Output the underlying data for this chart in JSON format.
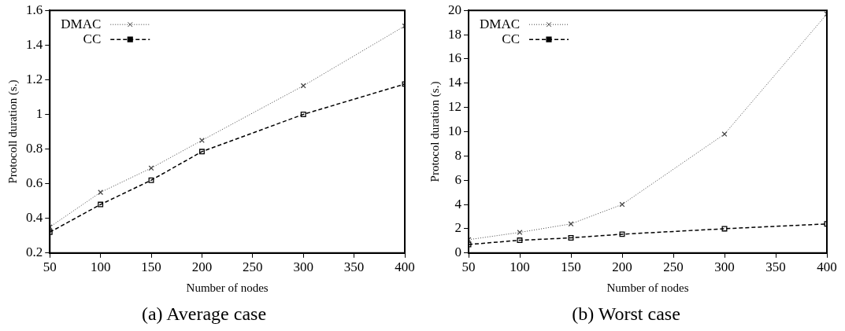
{
  "chart_data": [
    {
      "type": "line",
      "title": "(a) Average case",
      "xlabel": "Number of nodes",
      "ylabel": "Protocoll duration (s.)",
      "x": [
        50,
        100,
        150,
        200,
        300,
        400
      ],
      "xlim": [
        50,
        400
      ],
      "xticks": [
        50,
        100,
        150,
        200,
        250,
        300,
        350,
        400
      ],
      "ylim": [
        0.2,
        1.6
      ],
      "yticks": [
        {
          "value": 0.2,
          "label": "0.2"
        },
        {
          "value": 0.4,
          "label": "0.4"
        },
        {
          "value": 0.6,
          "label": "0.6"
        },
        {
          "value": 0.8,
          "label": "0.8"
        },
        1,
        {
          "value": 1.2,
          "label": "1.2"
        },
        {
          "value": 1.4,
          "label": "1.4"
        },
        {
          "value": 1.6,
          "label": "1.6"
        }
      ],
      "legend": "top left",
      "grid": false,
      "series": [
        {
          "name": "DMAC",
          "color": "#444444",
          "marker": "cross",
          "line_style": "dotted",
          "values": [
            0.35,
            0.55,
            0.69,
            0.85,
            1.165,
            1.51
          ]
        },
        {
          "name": "CC",
          "color": "#000000",
          "marker": "square",
          "line_style": "dashed",
          "values": [
            0.32,
            0.48,
            0.62,
            0.785,
            1.0,
            1.175
          ]
        }
      ]
    },
    {
      "type": "line",
      "title": "(b) Worst case",
      "xlabel": "Number of nodes",
      "ylabel": "Protocol duration (s.)",
      "x": [
        50,
        100,
        150,
        200,
        300,
        400
      ],
      "xlim": [
        50,
        400
      ],
      "xticks": [
        50,
        100,
        150,
        200,
        250,
        300,
        350,
        400
      ],
      "ylim": [
        0,
        20
      ],
      "yticks": [
        0,
        2,
        4,
        6,
        8,
        10,
        12,
        14,
        16,
        18,
        20
      ],
      "legend": "top left",
      "grid": false,
      "series": [
        {
          "name": "DMAC",
          "color": "#444444",
          "marker": "cross",
          "line_style": "dotted",
          "values": [
            1.1,
            1.7,
            2.4,
            4.0,
            9.8,
            19.7
          ]
        },
        {
          "name": "CC",
          "color": "#000000",
          "marker": "square",
          "line_style": "dashed",
          "values": [
            0.7,
            1.05,
            1.25,
            1.55,
            2.0,
            2.4
          ]
        }
      ]
    }
  ]
}
